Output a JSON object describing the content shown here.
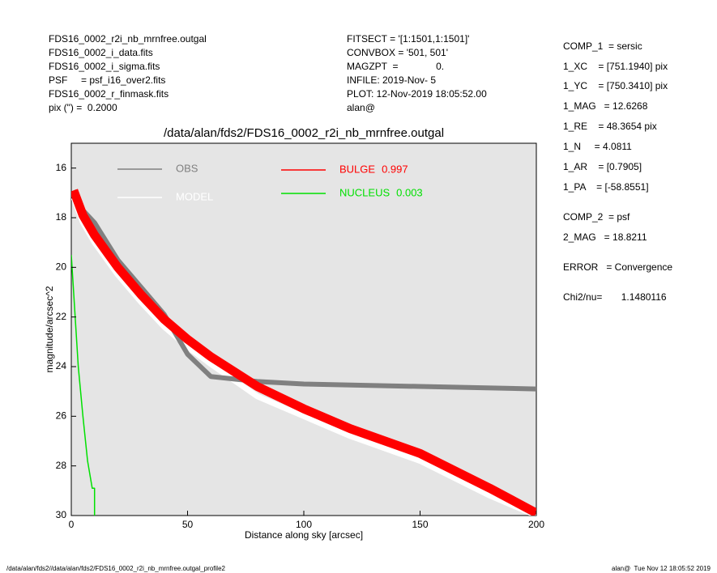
{
  "header": {
    "left": [
      "FDS16_0002_r2i_nb_mrnfree.outgal",
      "FDS16_0002_i_data.fits",
      "FDS16_0002_i_sigma.fits",
      "PSF     = psf_i16_over2.fits",
      "FDS16_0002_r_finmask.fits",
      "pix (\") =  0.2000"
    ],
    "center": [
      "FITSECT = '[1:1501,1:1501]'",
      "CONVBOX = '501, 501'",
      "MAGZPT  =              0.",
      "INFILE: 2019-Nov- 5",
      "PLOT: 12-Nov-2019 18:05:52.00",
      "alan@"
    ],
    "right": [
      "COMP_1  = sersic",
      "1_XC    = [751.1940] pix",
      "1_YC    = [750.3410] pix",
      "1_MAG   = 12.6268",
      "1_RE    = 48.3654 pix",
      "1_N     = 4.0811",
      "1_AR    = [0.7905]",
      "1_PA    = [-58.8551]",
      "COMP_2  = psf",
      "2_MAG   = 18.8211",
      "ERROR   = Convergence",
      "Chi2/nu=       1.1480116"
    ]
  },
  "footer": {
    "left": "/data/alan/fds2//data/alan/fds2/FDS16_0002_r2i_nb_mrnfree.outgal_profile2",
    "right": "alan@  Tue Nov 12 18:05:52 2019"
  },
  "chart_data": {
    "type": "line",
    "title": "/data/alan/fds2/FDS16_0002_r2i_nb_mrnfree.outgal",
    "x_label": "Distance along sky [arcsec]",
    "y_label": "magnitude/arcsec^2",
    "xlim": [
      0,
      200
    ],
    "ylim": [
      30,
      15
    ],
    "xticks": [
      0,
      50,
      100,
      150,
      200
    ],
    "yticks": [
      16,
      18,
      20,
      22,
      24,
      26,
      28,
      30
    ],
    "series": [
      {
        "name": "MODEL",
        "color": "#ffffff",
        "x": [
          1,
          5,
          10,
          20,
          30,
          40,
          50,
          60,
          80,
          100,
          120,
          150,
          180,
          200
        ],
        "values": [
          17.2,
          18.2,
          19.0,
          20.3,
          21.4,
          22.4,
          23.2,
          23.9,
          25.2,
          26.0,
          26.8,
          27.8,
          29.2,
          30.0
        ]
      },
      {
        "name": "OBS",
        "color": "#808080",
        "x": [
          1,
          5,
          10,
          20,
          30,
          40,
          50,
          60,
          80,
          100,
          150,
          200
        ],
        "values": [
          16.9,
          17.7,
          18.2,
          19.7,
          20.8,
          21.9,
          23.5,
          24.4,
          24.6,
          24.7,
          24.8,
          24.9
        ]
      },
      {
        "name": "BULGE",
        "fraction": 0.997,
        "color": "#ff0000",
        "x": [
          1,
          5,
          10,
          20,
          30,
          40,
          50,
          60,
          80,
          100,
          120,
          150,
          180,
          200
        ],
        "values": [
          16.9,
          17.9,
          18.7,
          20.0,
          21.1,
          22.1,
          22.9,
          23.6,
          24.8,
          25.7,
          26.5,
          27.5,
          28.9,
          29.9
        ]
      },
      {
        "name": "NUCLEUS",
        "fraction": 0.003,
        "color": "#00e000",
        "x": [
          0,
          1,
          2,
          3,
          5,
          7,
          9,
          10,
          10
        ],
        "values": [
          19.5,
          21,
          22.5,
          24,
          26,
          27.8,
          28.9,
          28.9,
          30
        ]
      }
    ]
  }
}
